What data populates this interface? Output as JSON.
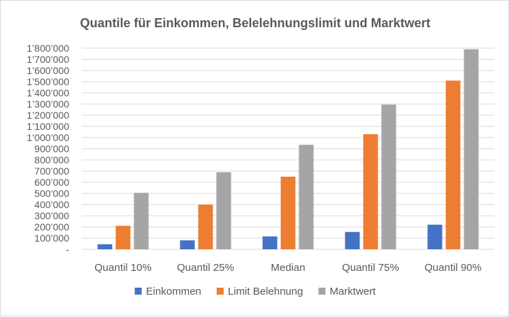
{
  "chart_data": {
    "type": "bar",
    "title": "Quantile für Einkommen, Belelehnungslimit und Marktwert",
    "categories": [
      "Quantil 10%",
      "Quantil 25%",
      "Median",
      "Quantil 75%",
      "Quantil 90%"
    ],
    "series": [
      {
        "name": "Einkommen",
        "color": "#4472C4",
        "values": [
          45000,
          80000,
          115000,
          155000,
          220000
        ]
      },
      {
        "name": "Limit Belehnung",
        "color": "#ED7D31",
        "values": [
          210000,
          400000,
          650000,
          1030000,
          1510000
        ]
      },
      {
        "name": "Marktwert",
        "color": "#A5A5A5",
        "values": [
          505000,
          690000,
          935000,
          1295000,
          1790000
        ]
      }
    ],
    "ylim": [
      0,
      1800000
    ],
    "yticks": [
      {
        "value": 0,
        "label": "-"
      },
      {
        "value": 100000,
        "label": "100’000"
      },
      {
        "value": 200000,
        "label": "200’000"
      },
      {
        "value": 300000,
        "label": "300’000"
      },
      {
        "value": 400000,
        "label": "400’000"
      },
      {
        "value": 500000,
        "label": "500’000"
      },
      {
        "value": 600000,
        "label": "600’000"
      },
      {
        "value": 700000,
        "label": "700’000"
      },
      {
        "value": 800000,
        "label": "800’000"
      },
      {
        "value": 900000,
        "label": "900’000"
      },
      {
        "value": 1000000,
        "label": "1’000’000"
      },
      {
        "value": 1100000,
        "label": "1’100’000"
      },
      {
        "value": 1200000,
        "label": "1’200’000"
      },
      {
        "value": 1300000,
        "label": "1’300’000"
      },
      {
        "value": 1400000,
        "label": "1’400’000"
      },
      {
        "value": 1500000,
        "label": "1’500’000"
      },
      {
        "value": 1600000,
        "label": "1’600’000"
      },
      {
        "value": 1700000,
        "label": "1’700’000"
      },
      {
        "value": 1800000,
        "label": "1’800’000"
      }
    ],
    "grid": true,
    "legend": "bottom",
    "gridColor": "#d9d9d9",
    "textColor": "#595959"
  }
}
